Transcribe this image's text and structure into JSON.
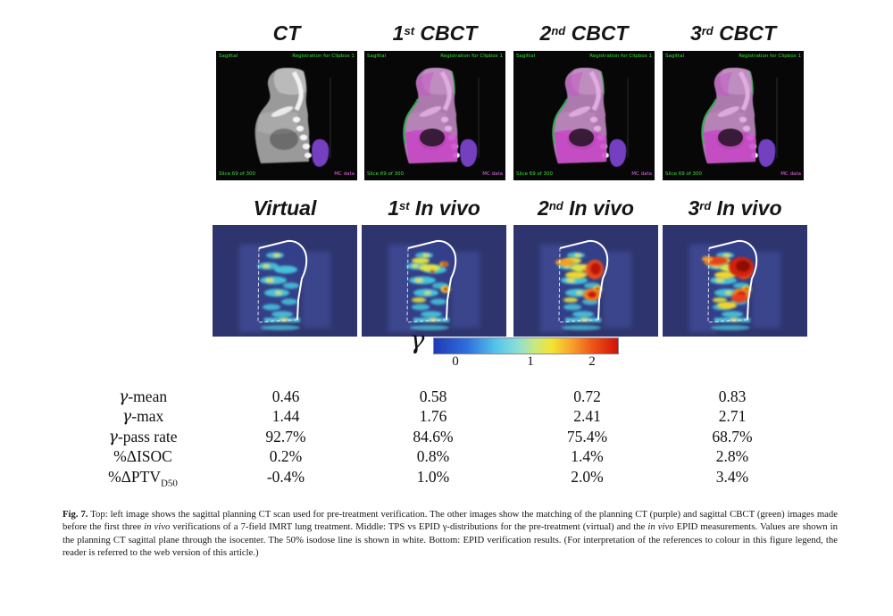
{
  "top_row": {
    "labels": [
      {
        "num": "",
        "sup": "",
        "text": "CT"
      },
      {
        "num": "1",
        "sup": "st",
        "text": " CBCT"
      },
      {
        "num": "2",
        "sup": "nd",
        "text": " CBCT"
      },
      {
        "num": "3",
        "sup": "rd",
        "text": " CBCT"
      }
    ],
    "overlay": {
      "top_left": "Sagittal",
      "top_right": "Registration for Clipbox 1",
      "bottom_left": "Slice 69 of 300",
      "bottom_right": "MC data"
    }
  },
  "middle_row": {
    "labels": [
      {
        "num": "",
        "sup": "",
        "text": "Virtual"
      },
      {
        "num": "1",
        "sup": "st",
        "text": " In vivo"
      },
      {
        "num": "2",
        "sup": "nd",
        "text": " In vivo"
      },
      {
        "num": "3",
        "sup": "rd",
        "text": " In vivo"
      }
    ]
  },
  "colorbar": {
    "symbol": "γ",
    "ticks": [
      "0",
      "1",
      "2"
    ]
  },
  "table": {
    "rows": [
      {
        "italic": "γ",
        "text": "-mean",
        "sub": "",
        "values": [
          "0.46",
          "0.58",
          "0.72",
          "0.83"
        ]
      },
      {
        "italic": "γ",
        "text": "-max",
        "sub": "",
        "values": [
          "1.44",
          "1.76",
          "2.41",
          "2.71"
        ]
      },
      {
        "italic": "γ",
        "text": "-pass rate",
        "sub": "",
        "values": [
          "92.7%",
          "84.6%",
          "75.4%",
          "68.7%"
        ]
      },
      {
        "italic": "",
        "text": "%ΔISOC",
        "sub": "",
        "values": [
          "0.2%",
          "0.8%",
          "1.4%",
          "2.8%"
        ]
      },
      {
        "italic": "",
        "text": "%ΔPTV",
        "sub": "D50",
        "values": [
          "-0.4%",
          "1.0%",
          "2.0%",
          "3.4%"
        ]
      }
    ]
  },
  "caption": {
    "segments": [
      {
        "style": "bold",
        "text": "Fig. 7."
      },
      {
        "style": "normal",
        "text": " Top: left image shows the sagittal planning CT scan used for pre-treatment verification. The other images show the matching of the planning CT (purple) and sagittal CBCT (green) images made before the first three "
      },
      {
        "style": "italic",
        "text": "in vivo"
      },
      {
        "style": "normal",
        "text": " verifications of a 7-field IMRT lung treatment. Middle: TPS vs EPID γ-distributions for the pre-treatment (virtual) and the "
      },
      {
        "style": "italic",
        "text": "in vivo"
      },
      {
        "style": "normal",
        "text": " EPID measurements. Values are shown in the planning CT sagittal plane through the isocenter. The 50% isodose line is shown in white. Bottom: EPID verification results. (For interpretation of the references to colour in this figure legend, the reader is referred to the web version of this article.)"
      }
    ]
  },
  "colors": {
    "scan_text_green": "#35e035",
    "scan_text_magenta": "#e26be2",
    "cbct_magenta": "#c84fc8",
    "gamma_background": "#2e356e",
    "isodose_white": "#ffffff",
    "couch_purple": "#7440bf"
  }
}
